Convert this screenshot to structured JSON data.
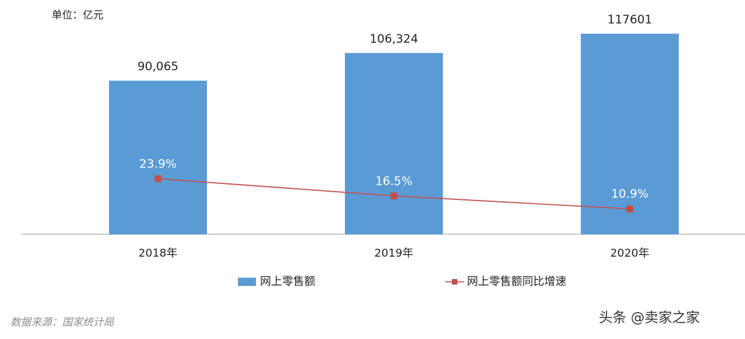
{
  "chart_data": {
    "type": "bar",
    "annotations": [
      "单位：亿元"
    ],
    "categories": [
      "2018年",
      "2019年",
      "2020年"
    ],
    "series": [
      {
        "name": "网上零售额",
        "type": "bar",
        "color": "#5b9bd5",
        "values": [
          90065,
          106324,
          117601
        ],
        "value_labels": [
          "90,065",
          "106,324",
          "117601"
        ]
      },
      {
        "name": "网上零售额同比增速",
        "type": "line",
        "axis": "y2",
        "color": "#c0504d",
        "values": [
          23.9,
          16.5,
          10.9
        ],
        "value_labels": [
          "23.9%",
          "16.5%",
          "10.9%"
        ]
      }
    ],
    "ylim": [
      0,
      120000
    ],
    "y2lim": [
      0,
      88
    ],
    "legend": "bottom"
  },
  "source": "数据来源：国家统计局",
  "watermark": "头条 @卖家之家"
}
